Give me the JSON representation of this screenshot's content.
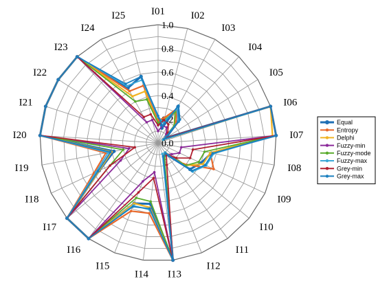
{
  "chart_data": {
    "type": "radar",
    "categories": [
      "I01",
      "I02",
      "I03",
      "I04",
      "I05",
      "I06",
      "I07",
      "I08",
      "I09",
      "I10",
      "I11",
      "I12",
      "I13",
      "I14",
      "I15",
      "I16",
      "I17",
      "I18",
      "I19",
      "I20",
      "I21",
      "I22",
      "I23",
      "I24",
      "I25"
    ],
    "r_ticks": [
      "0.0",
      "0.2",
      "0.4",
      "0.6",
      "0.8",
      "1.0"
    ],
    "rlim": [
      0,
      1
    ],
    "grid": true,
    "legend_position": "right",
    "series": [
      {
        "name": "Equal",
        "color": "#1f6fb4",
        "width": 3,
        "values": [
          0.21,
          0.13,
          0.35,
          0.25,
          0.08,
          1.0,
          1.0,
          0.46,
          0.4,
          0.35,
          0.12,
          0.13,
          1.0,
          0.52,
          0.55,
          1.0,
          1.0,
          0.55,
          0.38,
          1.0,
          1.0,
          1.0,
          1.0,
          0.53,
          0.58
        ]
      },
      {
        "name": "Entropy",
        "color": "#e8682a",
        "width": 2.2,
        "values": [
          0.19,
          0.22,
          0.33,
          0.22,
          0.06,
          1.0,
          1.0,
          0.45,
          0.52,
          0.28,
          0.1,
          0.12,
          1.0,
          0.6,
          0.62,
          1.0,
          1.0,
          0.6,
          0.45,
          1.0,
          1.0,
          1.0,
          1.0,
          0.5,
          0.5
        ]
      },
      {
        "name": "Delphi",
        "color": "#f0b323",
        "width": 2.2,
        "values": [
          0.17,
          0.2,
          0.3,
          0.2,
          0.05,
          1.0,
          0.97,
          0.45,
          0.42,
          0.3,
          0.1,
          0.12,
          1.0,
          0.55,
          0.55,
          1.0,
          1.0,
          0.55,
          0.4,
          1.0,
          1.0,
          1.0,
          1.0,
          0.45,
          0.45
        ]
      },
      {
        "name": "Fuzzy-min",
        "color": "#8b2a9a",
        "width": 1.8,
        "values": [
          0.1,
          0.15,
          0.15,
          0.1,
          0.06,
          1.0,
          1.0,
          0.2,
          0.2,
          0.15,
          0.12,
          0.12,
          1.0,
          0.25,
          0.35,
          1.0,
          1.0,
          0.35,
          0.25,
          1.0,
          1.0,
          1.0,
          1.0,
          0.2,
          0.2
        ]
      },
      {
        "name": "Fuzzy-mode",
        "color": "#5aab2c",
        "width": 1.8,
        "values": [
          0.17,
          0.2,
          0.3,
          0.2,
          0.05,
          1.0,
          1.0,
          0.4,
          0.38,
          0.3,
          0.1,
          0.15,
          1.0,
          0.5,
          0.5,
          1.0,
          1.0,
          0.45,
          0.3,
          1.0,
          1.0,
          1.0,
          1.0,
          0.4,
          0.38
        ]
      },
      {
        "name": "Fuzzy-max",
        "color": "#3aa8d8",
        "width": 1.8,
        "values": [
          0.22,
          0.18,
          0.33,
          0.25,
          0.05,
          1.0,
          1.0,
          0.48,
          0.45,
          0.38,
          0.1,
          0.1,
          1.0,
          0.57,
          0.57,
          1.0,
          1.0,
          0.58,
          0.43,
          1.0,
          1.0,
          1.0,
          1.0,
          0.55,
          0.55
        ]
      },
      {
        "name": "Grey-min",
        "color": "#b02030",
        "width": 1.8,
        "values": [
          0.15,
          0.2,
          0.18,
          0.12,
          0.08,
          1.0,
          1.0,
          0.3,
          0.3,
          0.2,
          0.12,
          0.2,
          1.0,
          0.3,
          0.45,
          1.0,
          1.0,
          0.45,
          0.2,
          1.0,
          1.0,
          1.0,
          1.0,
          0.25,
          0.25
        ]
      },
      {
        "name": "Grey-max",
        "color": "#1a7fbf",
        "width": 1.8,
        "values": [
          0.23,
          0.15,
          0.36,
          0.27,
          0.06,
          1.0,
          1.0,
          0.47,
          0.44,
          0.37,
          0.11,
          0.12,
          1.0,
          0.56,
          0.58,
          1.0,
          1.0,
          0.56,
          0.41,
          1.0,
          1.0,
          1.0,
          1.0,
          0.57,
          0.58
        ]
      }
    ]
  }
}
